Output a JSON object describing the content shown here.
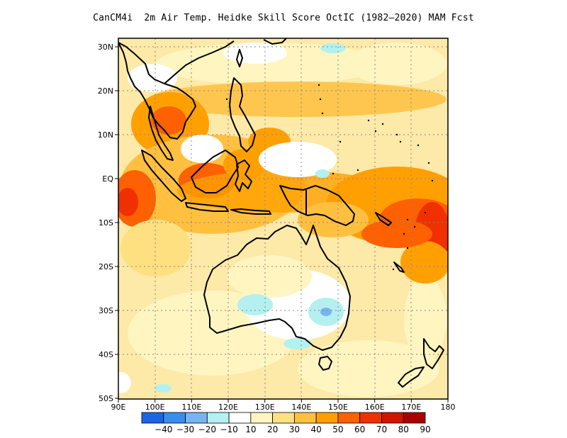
{
  "title": "CanCM4i  2m Air Temp. Heidke Skill Score OctIC (1982–2020) MAM Fcst",
  "map": {
    "lat_labels": [
      "30N",
      "20N",
      "10N",
      "EQ",
      "10S",
      "20S",
      "30S",
      "40S",
      "50S"
    ],
    "lon_labels": [
      "90E",
      "100E",
      "110E",
      "120E",
      "130E",
      "140E",
      "150E",
      "160E",
      "170E",
      "180"
    ],
    "lat_range": [
      -50,
      32
    ],
    "lon_range": [
      90,
      180
    ],
    "grid": "dotted",
    "background_color": "#fde9a8"
  },
  "colorbar": {
    "labels": [
      "−40",
      "−30",
      "−20",
      "−10",
      "10",
      "20",
      "30",
      "40",
      "50",
      "60",
      "70",
      "80",
      "90"
    ],
    "colors": [
      "#1e64e6",
      "#3c8ceb",
      "#78b4f0",
      "#b4f0f0",
      "#ffffff",
      "#fff5c0",
      "#ffe080",
      "#ffc040",
      "#ffa000",
      "#ff6000",
      "#f03000",
      "#d21400",
      "#aa0000"
    ]
  }
}
